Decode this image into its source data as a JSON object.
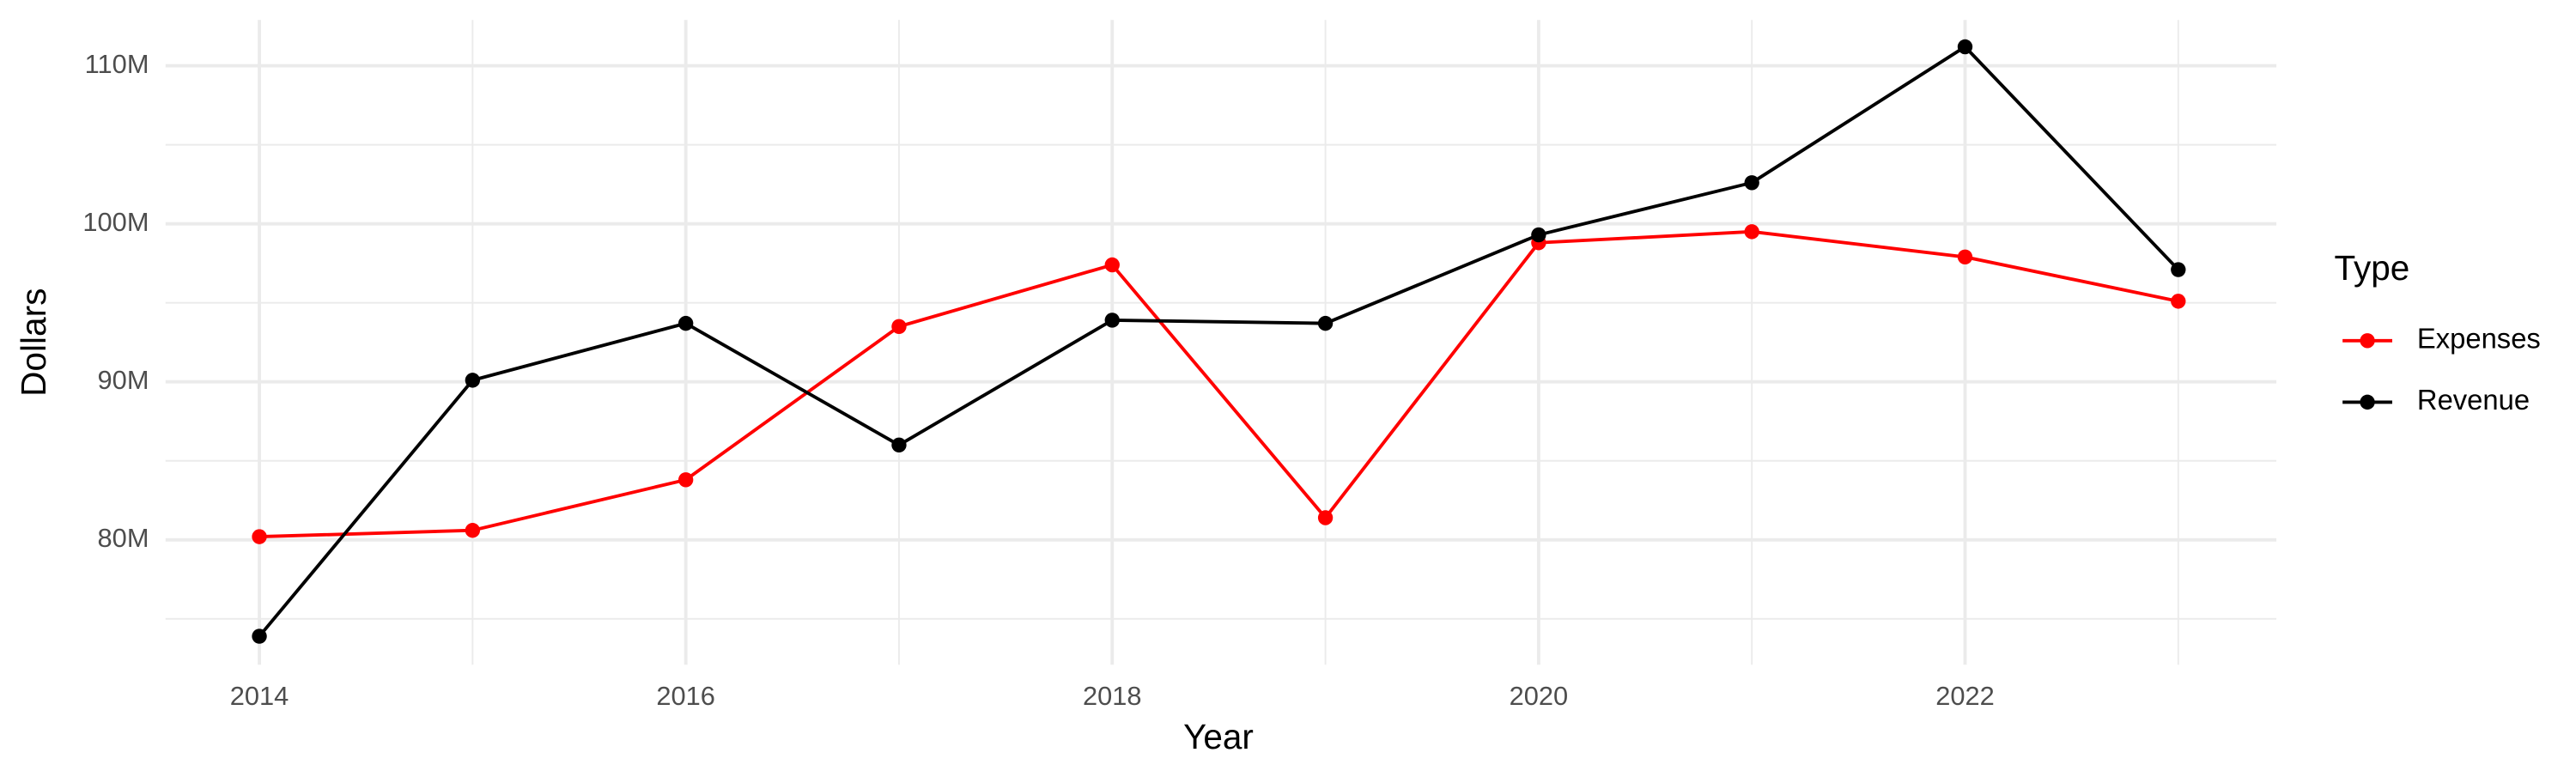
{
  "chart_data": {
    "type": "line",
    "x_label": "Year",
    "y_label": "Dollars",
    "legend_title": "Type",
    "x": [
      2014,
      2015,
      2016,
      2017,
      2018,
      2019,
      2020,
      2021,
      2022,
      2023
    ],
    "series": [
      {
        "name": "Expenses",
        "color": "#ff0000",
        "values": [
          80200000,
          80600000,
          83800000,
          93500000,
          97400000,
          81400000,
          98800000,
          99500000,
          97900000,
          95100000
        ]
      },
      {
        "name": "Revenue",
        "color": "#000000",
        "values": [
          73900000,
          90100000,
          93700000,
          86000000,
          93900000,
          93700000,
          99300000,
          102600000,
          111200000,
          97100000
        ]
      }
    ],
    "xlim": [
      2013.56,
      2023.46
    ],
    "xticks": [
      2014,
      2016,
      2018,
      2020,
      2022
    ],
    "ylim": [
      72100000,
      112900000
    ],
    "yticks": [
      {
        "value": 80000000,
        "label": "80M"
      },
      {
        "value": 90000000,
        "label": "90M"
      },
      {
        "value": 100000000,
        "label": "100M"
      },
      {
        "value": 110000000,
        "label": "110M"
      }
    ],
    "grid": true,
    "minor_grid": true,
    "legend": "right"
  }
}
